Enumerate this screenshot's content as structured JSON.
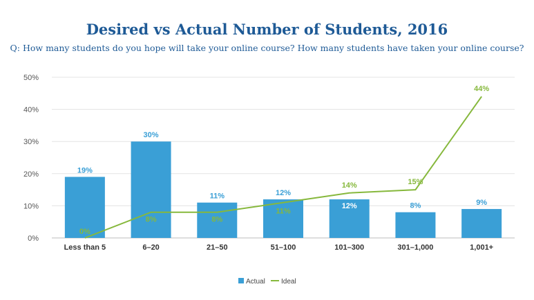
{
  "chart_data": {
    "type": "bar",
    "title": "Desired vs Actual Number of Students, 2016",
    "subtitle": "Q: How many students do you hope will take your online course? How many students have taken your online course?",
    "categories": [
      "Less than 5",
      "6–20",
      "21–50",
      "51–100",
      "101–300",
      "301–1,000",
      "1,001+"
    ],
    "series": [
      {
        "name": "Actual",
        "kind": "bar",
        "color": "#3a9fd6",
        "label_color": "#3a9fd6",
        "values": [
          19,
          30,
          11,
          12,
          12,
          8,
          9
        ],
        "labels": [
          "19%",
          "30%",
          "11%",
          "12%",
          "12%",
          "8%",
          "9%"
        ]
      },
      {
        "name": "Ideal",
        "kind": "line",
        "color": "#86b83c",
        "label_color": "#86b83c",
        "values": [
          0,
          8,
          8,
          11,
          14,
          15,
          44
        ],
        "labels": [
          "0%",
          "8%",
          "8%",
          "11%",
          "14%",
          "15%",
          "44%"
        ]
      }
    ],
    "y_ticks": [
      "0%",
      "10%",
      "20%",
      "30%",
      "40%",
      "50%"
    ],
    "ylim": [
      0,
      50
    ],
    "grid": true,
    "legend_position": "bottom-center"
  }
}
